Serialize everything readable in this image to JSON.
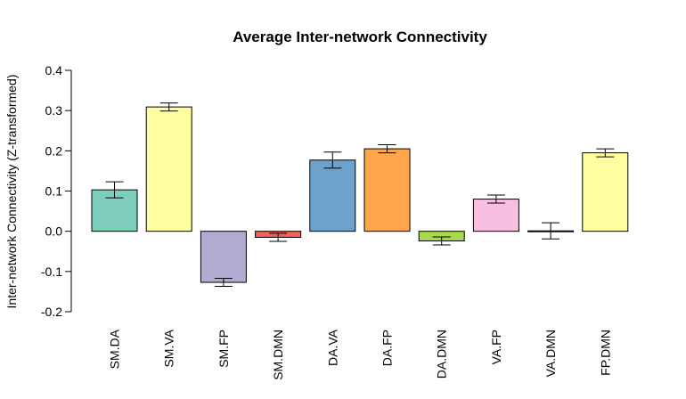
{
  "chart_data": {
    "type": "bar",
    "title": "Average Inter-network Connectivity",
    "xlabel": "",
    "ylabel": "Inter-network Connectivity (Z-transformed)",
    "ylim": [
      -0.2,
      0.4
    ],
    "yticks": [
      -0.2,
      -0.1,
      0.0,
      0.1,
      0.2,
      0.3,
      0.4
    ],
    "ytick_labels": [
      "-0.2",
      "-0.1",
      "0.0",
      "0.1",
      "0.2",
      "0.3",
      "0.4"
    ],
    "grid": false,
    "legend": "none",
    "categories": [
      "SM.DA",
      "SM.VA",
      "SM.FP",
      "SM.DMN",
      "DA.VA",
      "DA.FP",
      "DA.DMN",
      "VA.FP",
      "VA.DMN",
      "FP.DMN"
    ],
    "values": [
      0.103,
      0.309,
      -0.127,
      -0.015,
      0.177,
      0.205,
      -0.024,
      0.08,
      0.001,
      0.195
    ],
    "error_low": [
      0.083,
      0.299,
      -0.137,
      -0.025,
      0.157,
      0.195,
      -0.034,
      0.07,
      -0.019,
      0.185
    ],
    "error_high": [
      0.123,
      0.319,
      -0.117,
      -0.005,
      0.197,
      0.215,
      -0.014,
      0.09,
      0.021,
      0.205
    ],
    "colors": [
      "#7fcdbb",
      "#ffffa2",
      "#b1abd2",
      "#f0625d",
      "#6ca2cc",
      "#fea54e",
      "#a7d94f",
      "#f9bfe0",
      "#d9d9d9",
      "#ffffa2"
    ]
  }
}
